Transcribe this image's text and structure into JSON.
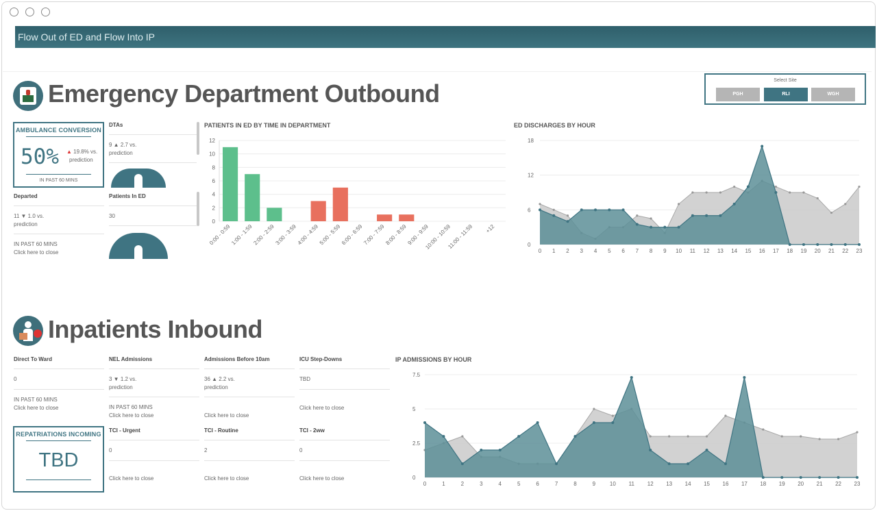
{
  "app": {
    "title": "Flow Out of ED and Flow Into IP"
  },
  "site_selector": {
    "label": "Select Site",
    "options": [
      "PGH",
      "RLI",
      "WGH"
    ],
    "selected": "RLI"
  },
  "ed": {
    "heading": "Emergency Department Outbound",
    "ambulance": {
      "label": "AMBULANCE CONVERSION",
      "value": "50%",
      "change": "19.8% vs.",
      "change2": "prediction",
      "footer": "IN PAST 60 MINS"
    },
    "dtas": {
      "label": "DTAs",
      "value": "9 ▲ 2.7 vs.",
      "value2": "prediction",
      "gauge_fill": 1.0
    },
    "departed": {
      "label": "Departed",
      "value": "11 ▼ 1.0 vs.",
      "value2": "prediction",
      "footer": "IN PAST 60 MINS",
      "link": "Click here to close"
    },
    "patients_in_ed": {
      "label": "Patients In ED",
      "value": "30",
      "gauge_fill": 1.0
    }
  },
  "ip": {
    "heading": "Inpatients Inbound",
    "direct_to_ward": {
      "label": "Direct To Ward",
      "value": "0",
      "footer": "IN PAST 60 MINS",
      "link": "Click here to close"
    },
    "nel": {
      "label": "NEL Admissions",
      "value": "3 ▼ 1.2 vs.",
      "value2": "prediction",
      "footer": "IN PAST 60 MINS",
      "link": "Click here to close"
    },
    "before10": {
      "label": "Admissions Before 10am",
      "value": "36 ▲ 2.2 vs.",
      "value2": "prediction",
      "link": "Click here to close"
    },
    "icu": {
      "label": "ICU Step-Downs",
      "value": "TBD",
      "link": "Click here to close"
    },
    "repat": {
      "label": "REPATRIATIONS INCOMING",
      "value": "TBD"
    },
    "tci_urgent": {
      "label": "TCI - Urgent",
      "value": "0",
      "link": "Click here to close"
    },
    "tci_routine": {
      "label": "TCI - Routine",
      "value": "2",
      "link": "Click here to close"
    },
    "tci_2ww": {
      "label": "TCI - 2ww",
      "value": "0",
      "link": "Click here to close"
    }
  },
  "colors": {
    "teal": "#3f7482",
    "green": "#5dbf8c",
    "red": "#e8705e",
    "gray": "#c4c4c4"
  },
  "icons": [
    "ambulance-icon",
    "inpatient-icon"
  ],
  "chart_data": [
    {
      "type": "bar",
      "title": "PATIENTS IN ED BY TIME IN DEPARTMENT",
      "categories": [
        "0:00 - 0:59",
        "1:00 - 1:59",
        "2:00 - 2:59",
        "3:00 - 3:59",
        "4:00 - 4:59",
        "5:00 - 5:59",
        "6:00 - 6:59",
        "7:00 - 7:59",
        "8:00 - 8:59",
        "9:00 - 9:59",
        "10:00 - 10:59",
        "11:00 - 11:59",
        "+12"
      ],
      "values": [
        11,
        7,
        2,
        0,
        3,
        5,
        0,
        1,
        1,
        0,
        0,
        0,
        0
      ],
      "colors": [
        "#5dbf8c",
        "#5dbf8c",
        "#5dbf8c",
        "#5dbf8c",
        "#e8705e",
        "#e8705e",
        "#e8705e",
        "#e8705e",
        "#e8705e",
        "#e8705e",
        "#e8705e",
        "#e8705e",
        "#e8705e"
      ],
      "ylim": [
        0,
        12
      ],
      "yticks": [
        "0",
        "2",
        "4",
        "6",
        "8",
        "10",
        "12"
      ]
    },
    {
      "type": "area",
      "title": "ED DISCHARGES BY HOUR",
      "x": [
        0,
        1,
        2,
        3,
        4,
        5,
        6,
        7,
        8,
        9,
        10,
        11,
        12,
        13,
        14,
        15,
        16,
        17,
        18,
        19,
        20,
        21,
        22,
        23
      ],
      "series": [
        {
          "values": [
            6,
            5,
            4,
            6,
            6,
            6,
            6,
            3.5,
            3,
            3,
            3,
            5,
            5,
            5,
            7,
            10,
            17,
            9,
            0,
            0,
            0,
            0,
            0,
            0
          ]
        },
        {
          "values": [
            7,
            6,
            5,
            2,
            1,
            3,
            3,
            5,
            4.5,
            2,
            7,
            9,
            9,
            9,
            10,
            9,
            11,
            10,
            9,
            9,
            8,
            5.5,
            7,
            10
          ]
        }
      ],
      "ylim": [
        0,
        18
      ],
      "yticks": [
        "0",
        "6",
        "12",
        "18"
      ]
    },
    {
      "type": "area",
      "title": "IP ADMISSIONS BY HOUR",
      "x": [
        0,
        1,
        2,
        3,
        4,
        5,
        6,
        7,
        8,
        9,
        10,
        11,
        12,
        13,
        14,
        15,
        16,
        17,
        18,
        19,
        20,
        21,
        22,
        23
      ],
      "series": [
        {
          "values": [
            4,
            3,
            1,
            2,
            2,
            3,
            4,
            1,
            3,
            4,
            4,
            7.3,
            2,
            1,
            1,
            2,
            1,
            7.3,
            0,
            0,
            0,
            0,
            0,
            0
          ]
        },
        {
          "values": [
            2,
            2.5,
            3,
            1.5,
            1.5,
            1,
            1,
            1,
            3,
            5,
            4.5,
            5,
            3,
            3,
            3,
            3,
            4.5,
            4,
            3.5,
            3,
            3,
            2.8,
            2.8,
            3.3
          ]
        }
      ],
      "ylim": [
        0,
        7.5
      ],
      "yticks": [
        "0",
        "2.5",
        "5",
        "7.5"
      ]
    }
  ]
}
